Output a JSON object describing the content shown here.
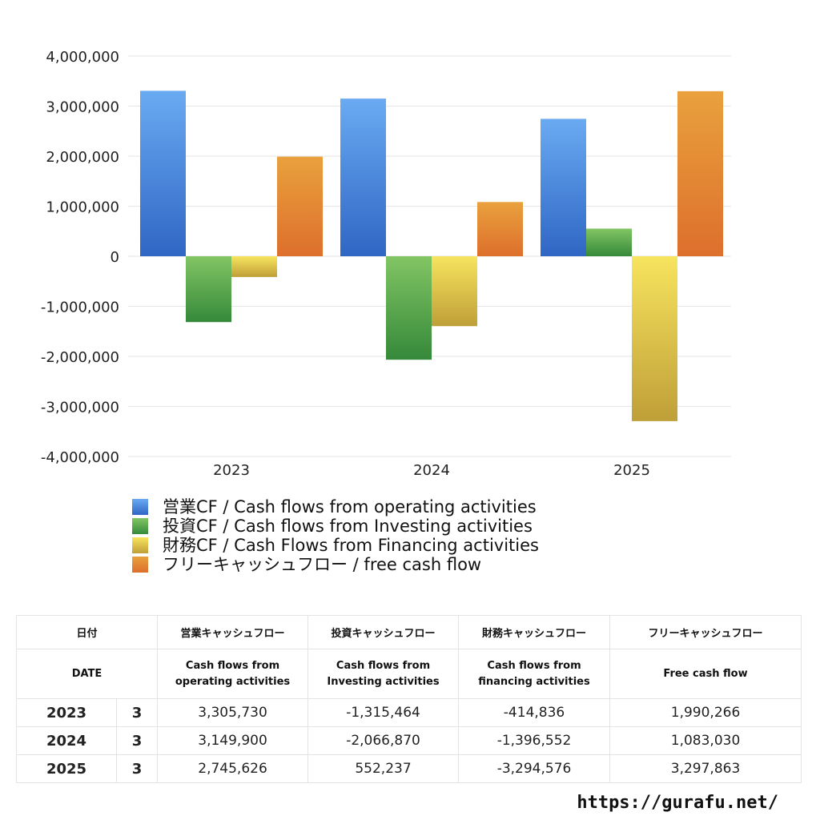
{
  "chart_data": {
    "type": "bar",
    "categories": [
      "2023",
      "2024",
      "2025"
    ],
    "series": [
      {
        "name": "営業CF / Cash flows from operating activities",
        "values": [
          3305730,
          3149900,
          2745626
        ]
      },
      {
        "name": "投資CF / Cash flows from Investing activities",
        "values": [
          -1315464,
          -2066870,
          552237
        ]
      },
      {
        "name": "財務CF / Cash Flows from Financing activities",
        "values": [
          -414836,
          -1396552,
          -3294576
        ]
      },
      {
        "name": "フリーキャッシュフロー / free cash flow",
        "values": [
          1990266,
          1083030,
          3297863
        ]
      }
    ],
    "ylim": [
      -4000000,
      4000000
    ],
    "yticks": [
      4000000,
      3000000,
      2000000,
      1000000,
      0,
      -1000000,
      -2000000,
      -3000000,
      -4000000
    ],
    "ytick_labels": [
      "4,000,000",
      "3,000,000",
      "2,000,000",
      "1,000,000",
      "0",
      "-1,000,000",
      "-2,000,000",
      "-3,000,000",
      "-4,000,000"
    ],
    "grid": true,
    "legend_position": "bottom",
    "colors": {
      "operating": [
        "#6aaaf2",
        "#2f66c4"
      ],
      "investing": [
        "#82c564",
        "#35893a"
      ],
      "financing": [
        "#f7e45e",
        "#bf9f38"
      ],
      "free": [
        "#e9a13d",
        "#dd6f2c"
      ]
    }
  },
  "legend": {
    "operating": "営業CF / Cash flows from operating activities",
    "investing": "投資CF / Cash flows from Investing activities",
    "financing": "財務CF / Cash Flows from Financing activities",
    "free": "フリーキャッシュフロー / free cash flow"
  },
  "table": {
    "header_jp": {
      "date": "日付",
      "operating": "営業キャッシュフロー",
      "investing": "投資キャッシュフロー",
      "financing": "財務キャッシュフロー",
      "free": "フリーキャッシュフロー"
    },
    "header_en": {
      "date": "DATE",
      "operating_1": "Cash flows from",
      "operating_2": "operating activities",
      "investing_1": "Cash flows from",
      "investing_2": "Investing activities",
      "financing_1": "Cash flows from",
      "financing_2": "financing activities",
      "free": "Free cash flow"
    },
    "rows": [
      {
        "year": "2023",
        "month": "3",
        "operating": "3,305,730",
        "investing": "-1,315,464",
        "financing": "-414,836",
        "free": "1,990,266"
      },
      {
        "year": "2024",
        "month": "3",
        "operating": "3,149,900",
        "investing": "-2,066,870",
        "financing": "-1,396,552",
        "free": "1,083,030"
      },
      {
        "year": "2025",
        "month": "3",
        "operating": "2,745,626",
        "investing": "552,237",
        "financing": "-3,294,576",
        "free": "3,297,863"
      }
    ]
  },
  "footer": {
    "url": "https://gurafu.net/"
  }
}
